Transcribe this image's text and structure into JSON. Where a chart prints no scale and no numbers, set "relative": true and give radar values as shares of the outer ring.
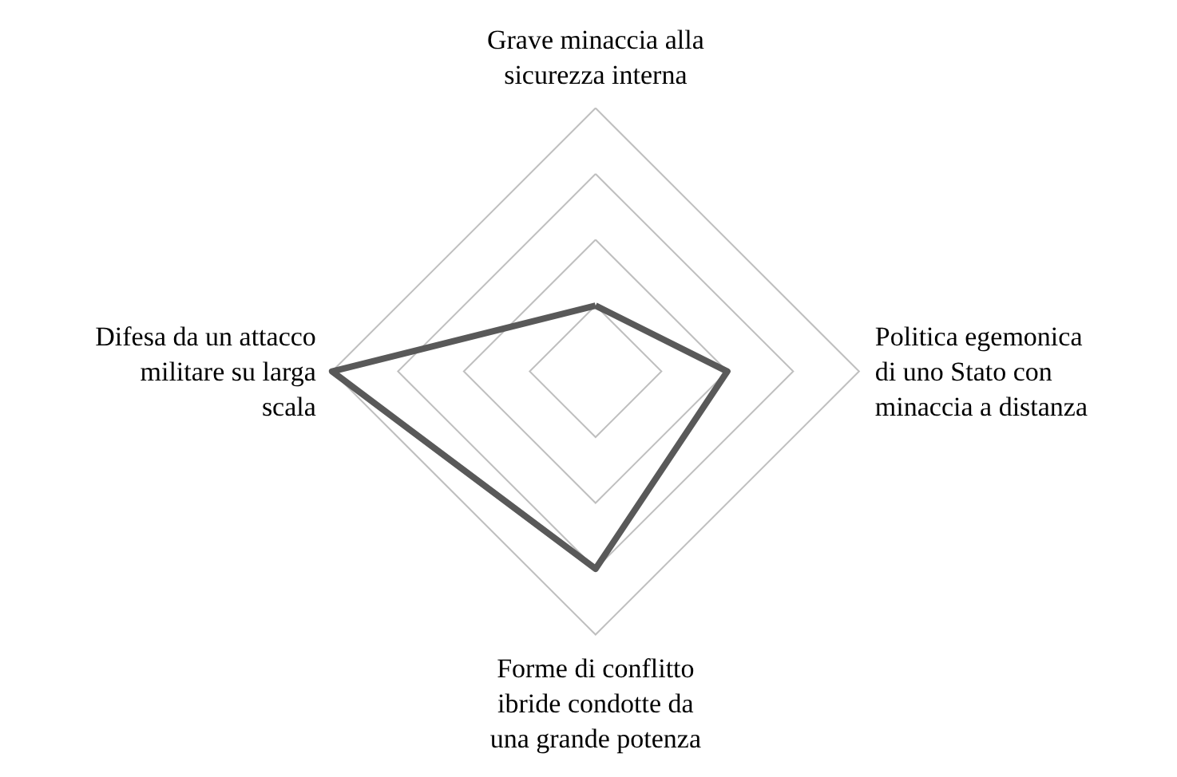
{
  "chart_data": {
    "type": "radar",
    "relative": true,
    "marker": "none",
    "categories": [
      "Grave minaccia alla sicurezza interna",
      "Politica egemonica di uno Stato con minaccia a distanza",
      "Forme di conflitto ibride condotte da una grande potenza",
      "Difesa da un attacco militare su larga scala"
    ],
    "series": [
      {
        "color": "#595959",
        "values": [
          0.25,
          0.5,
          0.75,
          1
        ]
      }
    ]
  }
}
